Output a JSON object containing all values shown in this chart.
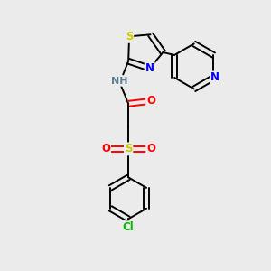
{
  "bg_color": "#ebebeb",
  "atom_colors": {
    "C": "#000000",
    "H": "#5f8090",
    "N": "#0000ff",
    "O": "#ff0000",
    "S": "#cccc00",
    "Cl": "#00bb00"
  },
  "bond_color": "#000000",
  "figsize": [
    3.0,
    3.0
  ],
  "dpi": 100
}
